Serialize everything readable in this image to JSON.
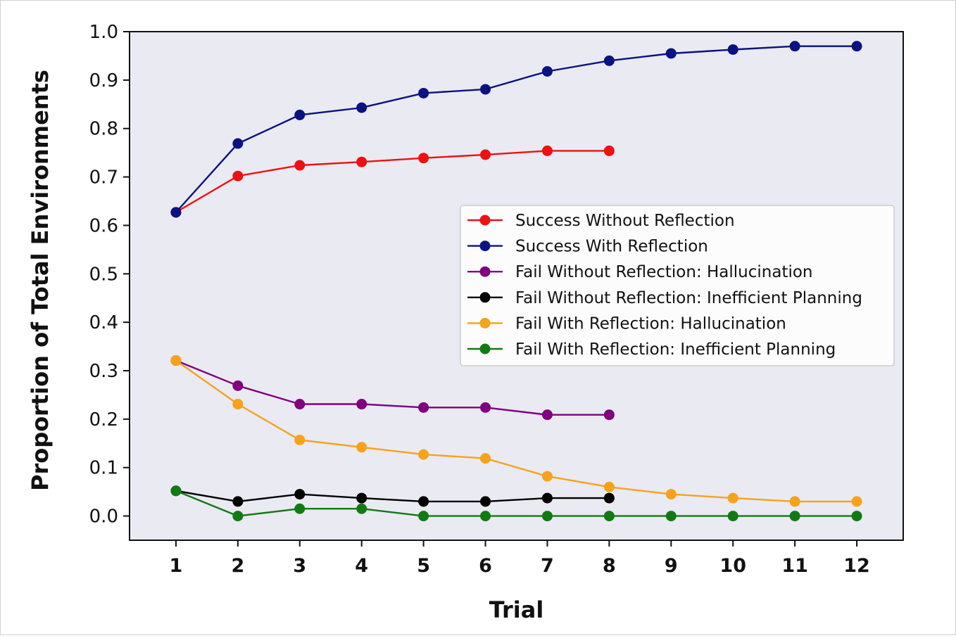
{
  "chart_data": {
    "type": "line",
    "title": "",
    "xlabel": "Trial",
    "ylabel": "Proportion of Total Environments",
    "xlim": [
      0.25,
      12.75
    ],
    "ylim": [
      -0.05,
      1.0
    ],
    "x_ticks": [
      "1",
      "2",
      "3",
      "4",
      "5",
      "6",
      "7",
      "8",
      "9",
      "10",
      "11",
      "12"
    ],
    "y_ticks": [
      "0.0",
      "0.1",
      "0.2",
      "0.3",
      "0.4",
      "0.5",
      "0.6",
      "0.7",
      "0.8",
      "0.9",
      "1.0"
    ],
    "grid": false,
    "background": "#EAEAF2",
    "legend_position": "center-right",
    "series": [
      {
        "name": "Success Without Reflection",
        "color": "#EE1111",
        "x": [
          1,
          2,
          3,
          4,
          5,
          6,
          7,
          8
        ],
        "values": [
          0.627,
          0.702,
          0.724,
          0.731,
          0.739,
          0.746,
          0.754,
          0.754
        ]
      },
      {
        "name": "Success With Reflection",
        "color": "#0A137F",
        "x": [
          1,
          2,
          3,
          4,
          5,
          6,
          7,
          8,
          9,
          10,
          11,
          12
        ],
        "values": [
          0.627,
          0.769,
          0.828,
          0.843,
          0.873,
          0.881,
          0.918,
          0.94,
          0.955,
          0.963,
          0.97,
          0.97
        ]
      },
      {
        "name": "Fail Without Reflection: Hallucination",
        "color": "#800080",
        "x": [
          1,
          2,
          3,
          4,
          5,
          6,
          7,
          8
        ],
        "values": [
          0.321,
          0.269,
          0.231,
          0.231,
          0.224,
          0.224,
          0.209,
          0.209
        ]
      },
      {
        "name": "Fail Without Reflection: Inefficient Planning",
        "color": "#000000",
        "x": [
          1,
          2,
          3,
          4,
          5,
          6,
          7,
          8
        ],
        "values": [
          0.052,
          0.03,
          0.045,
          0.037,
          0.03,
          0.03,
          0.037,
          0.037
        ]
      },
      {
        "name": "Fail With Reflection: Hallucination",
        "color": "#F5A31A",
        "x": [
          1,
          2,
          3,
          4,
          5,
          6,
          7,
          8,
          9,
          10,
          11,
          12
        ],
        "values": [
          0.321,
          0.231,
          0.157,
          0.142,
          0.127,
          0.119,
          0.082,
          0.06,
          0.045,
          0.037,
          0.03,
          0.03
        ]
      },
      {
        "name": "Fail With Reflection: Inefficient Planning",
        "color": "#127A12",
        "x": [
          1,
          2,
          3,
          4,
          5,
          6,
          7,
          8,
          9,
          10,
          11,
          12
        ],
        "values": [
          0.052,
          0.0,
          0.015,
          0.015,
          0.0,
          0.0,
          0.0,
          0.0,
          0.0,
          0.0,
          0.0,
          0.0
        ]
      }
    ]
  }
}
